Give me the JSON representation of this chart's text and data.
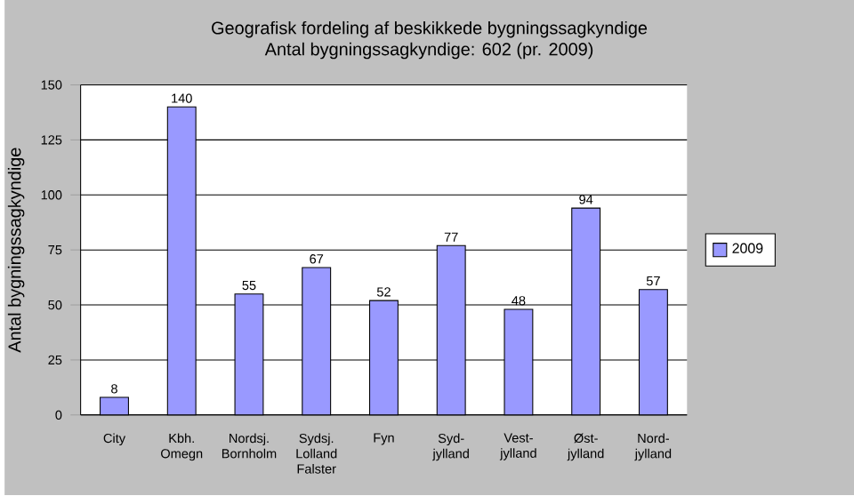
{
  "chart_data": {
    "type": "bar",
    "title": "Geografisk fordeling af beskikkede bygningssagkyndige",
    "subtitle": "Antal bygningssagkyndige: 602 (pr. 2009)",
    "ylabel": "Antal bygningssagkyndige",
    "categories": [
      "City",
      "Kbh. Omegn",
      "Nordsj. Bornholm",
      "Sydsj. Lolland Falster",
      "Fyn",
      "Syd-jylland",
      "Vest-jylland",
      "Øst-jylland",
      "Nord-jylland"
    ],
    "series": [
      {
        "name": "2009",
        "color": "#9999ff",
        "values": [
          8,
          140,
          55,
          67,
          52,
          77,
          48,
          94,
          57
        ]
      }
    ],
    "ylim": [
      0,
      150
    ],
    "yticks": [
      0,
      25,
      50,
      75,
      100,
      125,
      150
    ],
    "grid": "y",
    "legend": "right",
    "data_labels": true
  }
}
